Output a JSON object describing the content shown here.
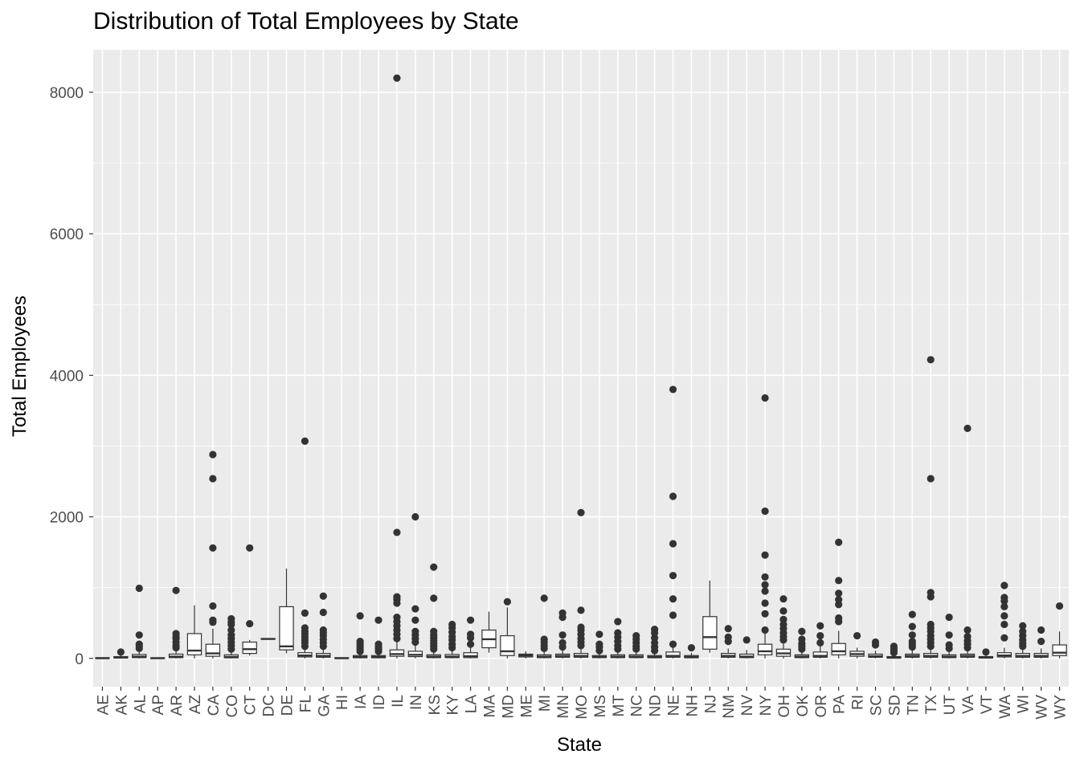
{
  "chart_data": {
    "type": "box",
    "title": "Distribution of Total Employees by State",
    "xlabel": "State",
    "ylabel": "Total Employees",
    "ylim": [
      -400,
      8600
    ],
    "yticks": [
      0,
      2000,
      4000,
      6000,
      8000
    ],
    "grid": true,
    "categories": [
      "AE",
      "AK",
      "AL",
      "AP",
      "AR",
      "AZ",
      "CA",
      "CO",
      "CT",
      "DC",
      "DE",
      "FL",
      "GA",
      "HI",
      "IA",
      "ID",
      "IL",
      "IN",
      "KS",
      "KY",
      "LA",
      "MA",
      "MD",
      "ME",
      "MI",
      "MN",
      "MO",
      "MS",
      "MT",
      "NC",
      "ND",
      "NE",
      "NH",
      "NJ",
      "NM",
      "NV",
      "NY",
      "OH",
      "OK",
      "OR",
      "PA",
      "RI",
      "SC",
      "SD",
      "TN",
      "TX",
      "UT",
      "VA",
      "VT",
      "WA",
      "WI",
      "WV",
      "WY"
    ],
    "boxes": [
      {
        "state": "AE",
        "min": 0,
        "q1": 0,
        "median": 3,
        "q3": 8,
        "max": 15,
        "outliers": []
      },
      {
        "state": "AK",
        "min": 0,
        "q1": 5,
        "median": 12,
        "q3": 25,
        "max": 60,
        "outliers": [
          90
        ]
      },
      {
        "state": "AL",
        "min": 0,
        "q1": 10,
        "median": 25,
        "q3": 55,
        "max": 110,
        "outliers": [
          140,
          170,
          200,
          330,
          990
        ]
      },
      {
        "state": "AP",
        "min": 0,
        "q1": 0,
        "median": 3,
        "q3": 6,
        "max": 12,
        "outliers": []
      },
      {
        "state": "AR",
        "min": 0,
        "q1": 10,
        "median": 25,
        "q3": 60,
        "max": 120,
        "outliers": [
          150,
          180,
          230,
          280,
          310,
          350,
          960
        ]
      },
      {
        "state": "AZ",
        "min": 0,
        "q1": 50,
        "median": 110,
        "q3": 350,
        "max": 750,
        "outliers": []
      },
      {
        "state": "CA",
        "min": 0,
        "q1": 30,
        "median": 70,
        "q3": 200,
        "max": 420,
        "outliers": [
          510,
          540,
          740,
          1560,
          2540,
          2880
        ]
      },
      {
        "state": "CO",
        "min": 0,
        "q1": 8,
        "median": 20,
        "q3": 50,
        "max": 100,
        "outliers": [
          130,
          180,
          230,
          280,
          330,
          400,
          480,
          510,
          560
        ]
      },
      {
        "state": "CT",
        "min": 40,
        "q1": 70,
        "median": 130,
        "q3": 230,
        "max": 260,
        "outliers": [
          490,
          1560
        ]
      },
      {
        "state": "DC",
        "min": 270,
        "q1": 270,
        "median": 275,
        "q3": 280,
        "max": 280,
        "outliers": []
      },
      {
        "state": "DE",
        "min": 70,
        "q1": 120,
        "median": 170,
        "q3": 730,
        "max": 1270,
        "outliers": []
      },
      {
        "state": "FL",
        "min": 0,
        "q1": 20,
        "median": 40,
        "q3": 80,
        "max": 150,
        "outliers": [
          170,
          220,
          260,
          300,
          340,
          380,
          430,
          640,
          3070
        ]
      },
      {
        "state": "GA",
        "min": 0,
        "q1": 15,
        "median": 35,
        "q3": 70,
        "max": 140,
        "outliers": [
          170,
          220,
          270,
          320,
          360,
          400,
          650,
          880
        ]
      },
      {
        "state": "HI",
        "min": 0,
        "q1": 0,
        "median": 3,
        "q3": 8,
        "max": 15,
        "outliers": []
      },
      {
        "state": "IA",
        "min": 0,
        "q1": 8,
        "median": 20,
        "q3": 40,
        "max": 80,
        "outliers": [
          100,
          130,
          160,
          200,
          240,
          600
        ]
      },
      {
        "state": "ID",
        "min": 0,
        "q1": 8,
        "median": 20,
        "q3": 40,
        "max": 80,
        "outliers": [
          100,
          130,
          160,
          200,
          540
        ]
      },
      {
        "state": "IL",
        "min": 0,
        "q1": 30,
        "median": 60,
        "q3": 120,
        "max": 240,
        "outliers": [
          280,
          340,
          400,
          460,
          520,
          580,
          780,
          830,
          870,
          1780,
          8200
        ]
      },
      {
        "state": "IN",
        "min": 0,
        "q1": 25,
        "median": 50,
        "q3": 100,
        "max": 200,
        "outliers": [
          230,
          280,
          330,
          380,
          540,
          700,
          2000
        ]
      },
      {
        "state": "KS",
        "min": 0,
        "q1": 10,
        "median": 25,
        "q3": 50,
        "max": 100,
        "outliers": [
          130,
          170,
          210,
          250,
          290,
          330,
          380,
          850,
          1290
        ]
      },
      {
        "state": "KY",
        "min": 0,
        "q1": 10,
        "median": 25,
        "q3": 55,
        "max": 110,
        "outliers": [
          150,
          200,
          260,
          310,
          370,
          430,
          480
        ]
      },
      {
        "state": "LA",
        "min": 0,
        "q1": 10,
        "median": 30,
        "q3": 80,
        "max": 150,
        "outliers": [
          200,
          290,
          340,
          540
        ]
      },
      {
        "state": "MA",
        "min": 80,
        "q1": 150,
        "median": 270,
        "q3": 400,
        "max": 660,
        "outliers": []
      },
      {
        "state": "MD",
        "min": 0,
        "q1": 40,
        "median": 100,
        "q3": 320,
        "max": 720,
        "outliers": [
          800
        ]
      },
      {
        "state": "ME",
        "min": 0,
        "q1": 20,
        "median": 40,
        "q3": 60,
        "max": 100,
        "outliers": []
      },
      {
        "state": "MI",
        "min": 0,
        "q1": 10,
        "median": 25,
        "q3": 50,
        "max": 100,
        "outliers": [
          140,
          180,
          230,
          270,
          850
        ]
      },
      {
        "state": "MN",
        "min": 0,
        "q1": 15,
        "median": 35,
        "q3": 60,
        "max": 120,
        "outliers": [
          160,
          220,
          330,
          580,
          640
        ]
      },
      {
        "state": "MO",
        "min": 0,
        "q1": 15,
        "median": 35,
        "q3": 70,
        "max": 140,
        "outliers": [
          180,
          230,
          280,
          340,
          400,
          440,
          680,
          2060
        ]
      },
      {
        "state": "MS",
        "min": 0,
        "q1": 10,
        "median": 20,
        "q3": 40,
        "max": 80,
        "outliers": [
          110,
          160,
          200,
          340
        ]
      },
      {
        "state": "MT",
        "min": 0,
        "q1": 10,
        "median": 25,
        "q3": 50,
        "max": 100,
        "outliers": [
          130,
          180,
          240,
          300,
          360,
          520
        ]
      },
      {
        "state": "NC",
        "min": 0,
        "q1": 10,
        "median": 25,
        "q3": 50,
        "max": 100,
        "outliers": [
          130,
          170,
          220,
          270,
          320
        ]
      },
      {
        "state": "ND",
        "min": 0,
        "q1": 8,
        "median": 20,
        "q3": 40,
        "max": 80,
        "outliers": [
          110,
          160,
          220,
          290,
          360,
          410
        ]
      },
      {
        "state": "NE",
        "min": 0,
        "q1": 15,
        "median": 35,
        "q3": 90,
        "max": 180,
        "outliers": [
          200,
          610,
          840,
          1170,
          1620,
          2290,
          3800
        ]
      },
      {
        "state": "NH",
        "min": 0,
        "q1": 8,
        "median": 20,
        "q3": 40,
        "max": 80,
        "outliers": [
          150
        ]
      },
      {
        "state": "NJ",
        "min": 80,
        "q1": 130,
        "median": 300,
        "q3": 590,
        "max": 1100,
        "outliers": []
      },
      {
        "state": "NM",
        "min": 0,
        "q1": 15,
        "median": 35,
        "q3": 70,
        "max": 140,
        "outliers": [
          240,
          300,
          420
        ]
      },
      {
        "state": "NV",
        "min": 0,
        "q1": 10,
        "median": 25,
        "q3": 60,
        "max": 120,
        "outliers": [
          260
        ]
      },
      {
        "state": "NY",
        "min": 0,
        "q1": 50,
        "median": 100,
        "q3": 200,
        "max": 350,
        "outliers": [
          400,
          630,
          780,
          950,
          1040,
          1150,
          1460,
          2080,
          3680
        ]
      },
      {
        "state": "OH",
        "min": 0,
        "q1": 30,
        "median": 70,
        "q3": 130,
        "max": 240,
        "outliers": [
          260,
          310,
          360,
          420,
          480,
          550,
          670,
          840
        ]
      },
      {
        "state": "OK",
        "min": 0,
        "q1": 10,
        "median": 25,
        "q3": 50,
        "max": 100,
        "outliers": [
          130,
          170,
          210,
          270,
          380
        ]
      },
      {
        "state": "OR",
        "min": 0,
        "q1": 15,
        "median": 35,
        "q3": 90,
        "max": 180,
        "outliers": [
          220,
          320,
          460
        ]
      },
      {
        "state": "PA",
        "min": 0,
        "q1": 50,
        "median": 100,
        "q3": 210,
        "max": 390,
        "outliers": [
          520,
          570,
          760,
          830,
          920,
          1100,
          1640
        ]
      },
      {
        "state": "RI",
        "min": 0,
        "q1": 30,
        "median": 60,
        "q3": 100,
        "max": 150,
        "outliers": [
          320
        ]
      },
      {
        "state": "SC",
        "min": 0,
        "q1": 15,
        "median": 30,
        "q3": 60,
        "max": 110,
        "outliers": [
          190,
          230
        ]
      },
      {
        "state": "SD",
        "min": 0,
        "q1": 5,
        "median": 10,
        "q3": 25,
        "max": 50,
        "outliers": [
          80,
          110,
          140,
          170
        ]
      },
      {
        "state": "TN",
        "min": 0,
        "q1": 15,
        "median": 35,
        "q3": 60,
        "max": 120,
        "outliers": [
          160,
          200,
          240,
          330,
          450,
          620
        ]
      },
      {
        "state": "TX",
        "min": 0,
        "q1": 15,
        "median": 35,
        "q3": 70,
        "max": 140,
        "outliers": [
          170,
          220,
          270,
          320,
          380,
          430,
          480,
          870,
          930,
          2540,
          4220
        ]
      },
      {
        "state": "UT",
        "min": 0,
        "q1": 10,
        "median": 25,
        "q3": 50,
        "max": 100,
        "outliers": [
          140,
          190,
          330,
          580
        ]
      },
      {
        "state": "VA",
        "min": 0,
        "q1": 15,
        "median": 35,
        "q3": 60,
        "max": 120,
        "outliers": [
          150,
          200,
          250,
          310,
          400,
          3250
        ]
      },
      {
        "state": "VT",
        "min": 0,
        "q1": 5,
        "median": 12,
        "q3": 25,
        "max": 50,
        "outliers": [
          90
        ]
      },
      {
        "state": "WA",
        "min": 0,
        "q1": 20,
        "median": 40,
        "q3": 80,
        "max": 150,
        "outliers": [
          290,
          480,
          600,
          730,
          810,
          860,
          1030
        ]
      },
      {
        "state": "WI",
        "min": 0,
        "q1": 15,
        "median": 35,
        "q3": 70,
        "max": 140,
        "outliers": [
          170,
          210,
          260,
          320,
          380,
          460
        ]
      },
      {
        "state": "WV",
        "min": 0,
        "q1": 15,
        "median": 35,
        "q3": 70,
        "max": 140,
        "outliers": [
          240,
          400
        ]
      },
      {
        "state": "WY",
        "min": 0,
        "q1": 40,
        "median": 80,
        "q3": 190,
        "max": 380,
        "outliers": [
          740
        ]
      }
    ]
  }
}
